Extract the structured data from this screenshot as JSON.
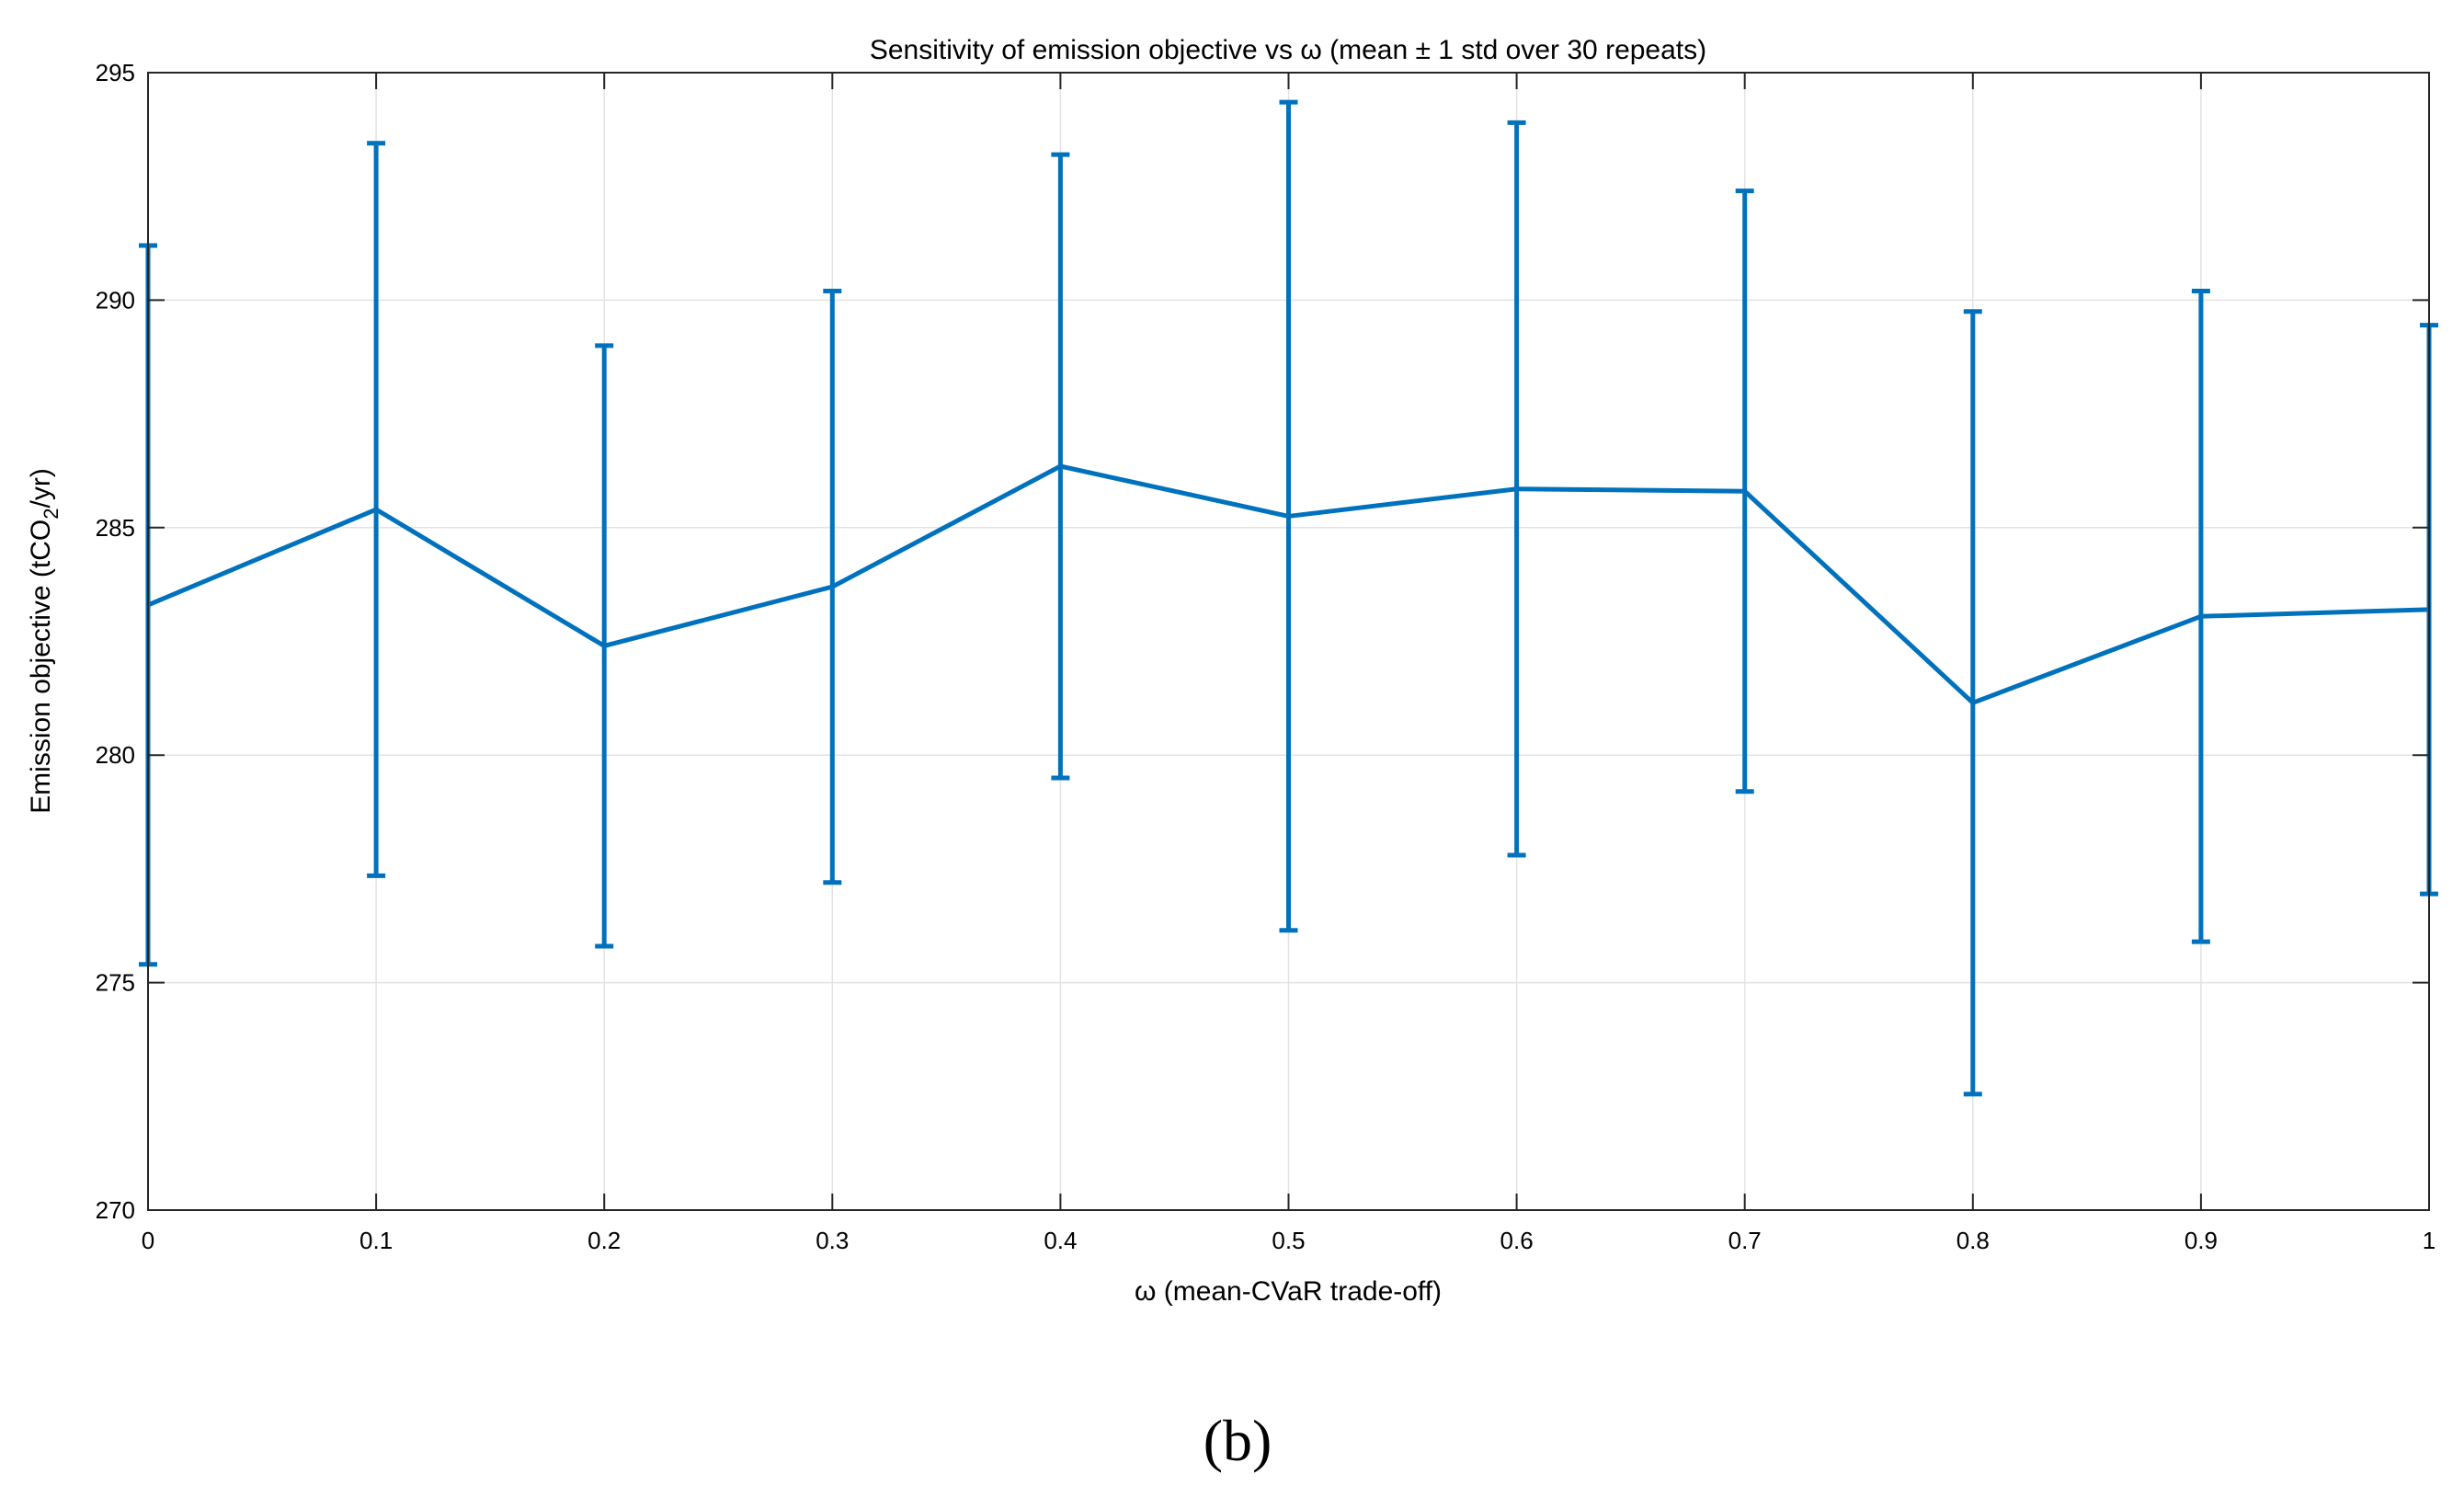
{
  "chart_data": {
    "type": "line",
    "title": "Sensitivity of emission objective vs ω (mean ± 1 std over 30 repeats)",
    "xlabel": "ω (mean-CVaR trade-off)",
    "ylabel": "Emission objective (tCO",
    "ylabel_sub": "2",
    "ylabel_tail": "/yr)",
    "xlim": [
      0,
      1
    ],
    "ylim": [
      270,
      295
    ],
    "x_ticks": [
      0,
      0.1,
      0.2,
      0.3,
      0.4,
      0.5,
      0.6,
      0.7,
      0.8,
      0.9,
      1
    ],
    "x_tick_labels": [
      "0",
      "0.1",
      "0.2",
      "0.3",
      "0.4",
      "0.5",
      "0.6",
      "0.7",
      "0.8",
      "0.9",
      "1"
    ],
    "y_ticks": [
      270,
      275,
      280,
      285,
      290,
      295
    ],
    "y_tick_labels": [
      "270",
      "275",
      "280",
      "285",
      "290",
      "295"
    ],
    "grid": true,
    "series": [
      {
        "x": [
          0,
          0.1,
          0.2,
          0.3,
          0.4,
          0.5,
          0.6,
          0.7,
          0.8,
          0.9,
          1.0
        ],
        "values": [
          283.3,
          285.4,
          282.4,
          283.7,
          286.35,
          285.25,
          285.85,
          285.8,
          281.15,
          283.05,
          283.2
        ],
        "std": [
          7.9,
          8.05,
          6.6,
          6.5,
          6.85,
          9.1,
          8.05,
          6.6,
          8.6,
          7.15,
          6.25
        ]
      }
    ],
    "colors": {
      "line": "#0072BD",
      "grid": "#e3e3e3",
      "axis": "#262626"
    }
  },
  "caption": "(b)"
}
